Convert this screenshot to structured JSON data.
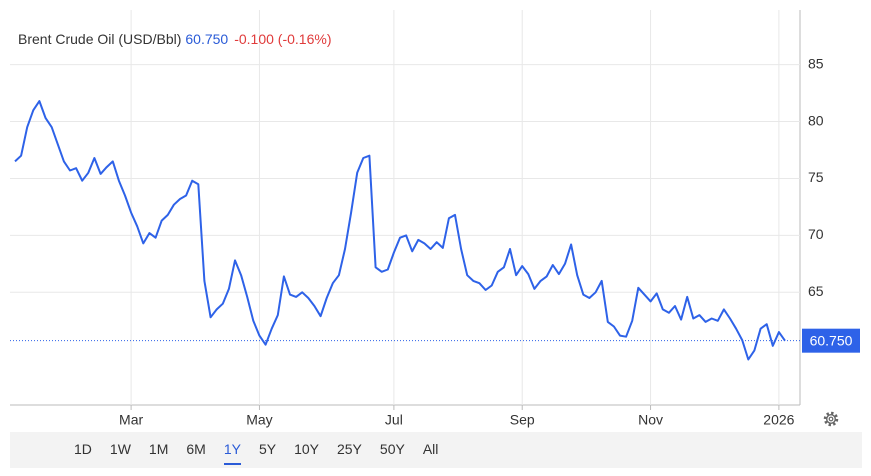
{
  "chart_data": {
    "type": "line",
    "title": "Brent Crude Oil (USD/Bbl)",
    "last_label": "60.750",
    "change": "-0.100 (-0.16%)",
    "categories": [
      null,
      null,
      null,
      null,
      null,
      null,
      null,
      null,
      null,
      null,
      null,
      null,
      null,
      null,
      null,
      null,
      null,
      null,
      null,
      "Mar",
      null,
      null,
      null,
      null,
      null,
      null,
      null,
      null,
      null,
      null,
      null,
      null,
      null,
      null,
      null,
      null,
      null,
      null,
      null,
      null,
      "May",
      null,
      null,
      null,
      null,
      null,
      null,
      null,
      null,
      null,
      null,
      null,
      null,
      null,
      null,
      null,
      null,
      null,
      null,
      null,
      null,
      null,
      "Jul",
      null,
      null,
      null,
      null,
      null,
      null,
      null,
      null,
      null,
      null,
      null,
      null,
      null,
      null,
      null,
      null,
      null,
      null,
      null,
      null,
      "Sep",
      null,
      null,
      null,
      null,
      null,
      null,
      null,
      null,
      null,
      null,
      null,
      null,
      null,
      null,
      null,
      null,
      null,
      null,
      null,
      null,
      "Nov",
      null,
      null,
      null,
      null,
      null,
      null,
      null,
      null,
      null,
      null,
      null,
      null,
      null,
      null,
      null,
      null,
      null,
      null,
      null,
      null,
      "2026",
      null
    ],
    "series": [
      {
        "name": "Brent Crude Oil",
        "color": "#2e62e8",
        "values": [
          76.5,
          77.0,
          79.5,
          81.0,
          81.8,
          80.3,
          79.5,
          78.0,
          76.5,
          75.7,
          75.9,
          74.8,
          75.5,
          76.8,
          75.4,
          76.0,
          76.5,
          74.8,
          73.5,
          72.0,
          70.8,
          69.3,
          70.2,
          69.8,
          71.3,
          71.8,
          72.7,
          73.2,
          73.5,
          74.8,
          74.5,
          66.0,
          62.8,
          63.5,
          64.0,
          65.3,
          67.8,
          66.5,
          64.6,
          62.5,
          61.2,
          60.4,
          61.8,
          63.0,
          66.4,
          64.8,
          64.6,
          65.0,
          64.5,
          63.8,
          62.9,
          64.5,
          65.8,
          66.5,
          68.8,
          72.0,
          75.5,
          76.8,
          77.0,
          67.2,
          66.8,
          67.0,
          68.5,
          69.8,
          70.0,
          68.6,
          69.6,
          69.3,
          68.8,
          69.4,
          68.9,
          71.5,
          71.8,
          68.8,
          66.5,
          66.0,
          65.8,
          65.2,
          65.6,
          66.8,
          67.2,
          68.8,
          66.5,
          67.3,
          66.6,
          65.3,
          66.0,
          66.4,
          67.4,
          66.6,
          67.5,
          69.2,
          66.5,
          64.8,
          64.5,
          65.0,
          66.0,
          62.4,
          62.0,
          61.2,
          61.1,
          62.5,
          65.4,
          64.8,
          64.2,
          64.9,
          63.5,
          63.2,
          63.8,
          62.6,
          64.6,
          62.7,
          63.0,
          62.4,
          62.7,
          62.5,
          63.5,
          62.7,
          61.8,
          60.8,
          59.1,
          59.9,
          61.8,
          62.2,
          60.3,
          61.5,
          60.75
        ]
      }
    ],
    "ylim": [
      55.1,
      89.8
    ],
    "yticks": [
      65,
      70,
      75,
      80,
      85
    ],
    "grid": true,
    "range_buttons": [
      "1D",
      "1W",
      "1M",
      "6M",
      "1Y",
      "5Y",
      "10Y",
      "25Y",
      "50Y",
      "All"
    ],
    "selected_range": "1Y"
  }
}
